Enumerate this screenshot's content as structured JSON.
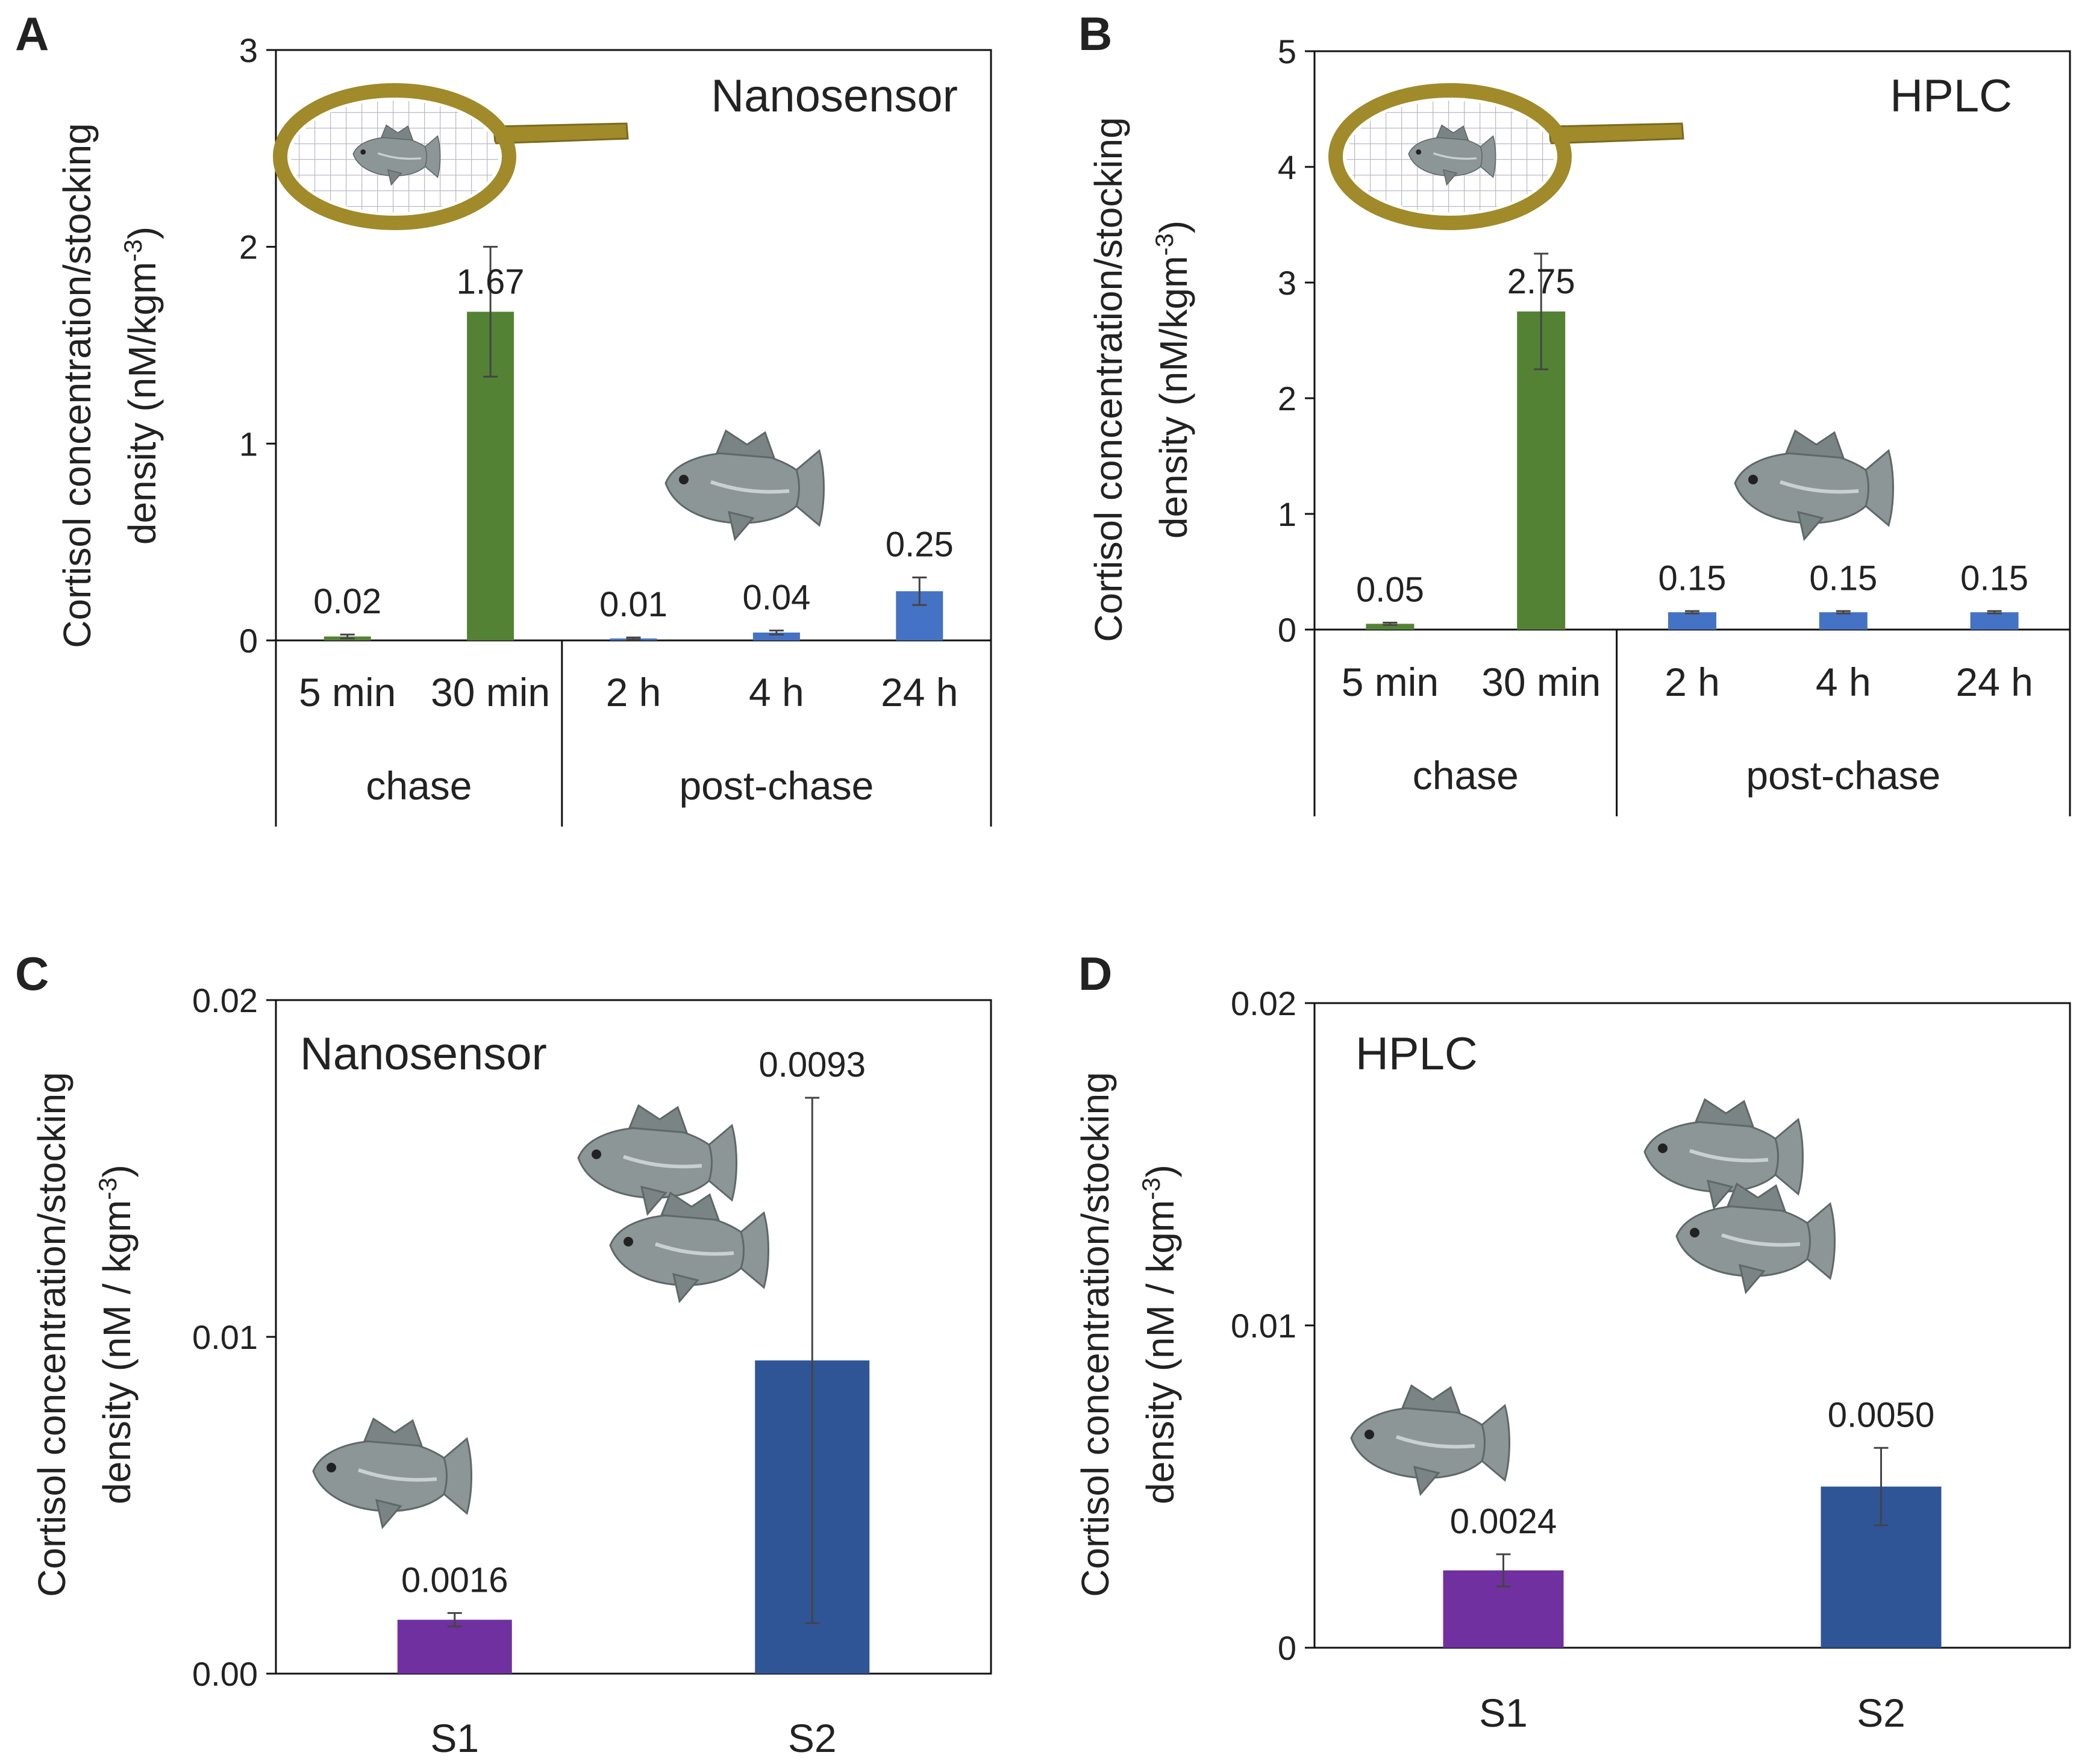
{
  "colors": {
    "chase_green": "#548235",
    "postchase_blue": "#4472c4",
    "s1_purple": "#7030a0",
    "s2_blue": "#2f5597",
    "error_bar": "#444444",
    "axis": "#111111",
    "net_frame": "#a08a2a",
    "fish_body": "#8c9696"
  },
  "chart_data": [
    {
      "panel": "A",
      "type": "bar",
      "method": "Nanosensor",
      "ylabel_line1": "Cortisol concentration/stocking",
      "ylabel_line2": "density (nM/kgm",
      "ylabel_sup": "-3",
      "ylabel_close": ")",
      "ylim": [
        0,
        3
      ],
      "yticks": [
        "0",
        "1",
        "2",
        "3"
      ],
      "ytick_values": [
        0,
        1,
        2,
        3
      ],
      "categories": [
        "5 min",
        "30 min",
        "2 h",
        "4 h",
        "24 h"
      ],
      "values": [
        0.02,
        1.67,
        0.01,
        0.04,
        0.25
      ],
      "value_labels": [
        "0.02",
        "1.67",
        "0.01",
        "0.04",
        "0.25"
      ],
      "errors": [
        0.01,
        0.33,
        0.005,
        0.01,
        0.07
      ],
      "bar_colors": [
        "#548235",
        "#548235",
        "#4472c4",
        "#4472c4",
        "#4472c4"
      ],
      "groups": [
        {
          "label": "chase",
          "start": 0,
          "end": 1
        },
        {
          "label": "post-chase",
          "start": 2,
          "end": 4
        }
      ],
      "icons": [
        "net-with-fish-icon",
        "fish-icon"
      ]
    },
    {
      "panel": "B",
      "type": "bar",
      "method": "HPLC",
      "ylabel_line1": "Cortisol concentration/stocking",
      "ylabel_line2": "density (nM/kgm",
      "ylabel_sup": "-3",
      "ylabel_close": ")",
      "ylim": [
        0,
        5
      ],
      "yticks": [
        "0",
        "1",
        "2",
        "3",
        "4",
        "5"
      ],
      "ytick_values": [
        0,
        1,
        2,
        3,
        4,
        5
      ],
      "categories": [
        "5 min",
        "30 min",
        "2 h",
        "4 h",
        "24 h"
      ],
      "values": [
        0.05,
        2.75,
        0.15,
        0.15,
        0.15
      ],
      "value_labels": [
        "0.05",
        "2.75",
        "0.15",
        "0.15",
        "0.15"
      ],
      "errors": [
        0.01,
        0.5,
        0.01,
        0.01,
        0.01
      ],
      "bar_colors": [
        "#548235",
        "#548235",
        "#4472c4",
        "#4472c4",
        "#4472c4"
      ],
      "groups": [
        {
          "label": "chase",
          "start": 0,
          "end": 1
        },
        {
          "label": "post-chase",
          "start": 2,
          "end": 4
        }
      ],
      "icons": [
        "net-with-fish-icon",
        "fish-icon"
      ]
    },
    {
      "panel": "C",
      "type": "bar",
      "method": "Nanosensor",
      "ylabel_line1": "Cortisol concentration/stocking",
      "ylabel_line2": "density (nM / kgm",
      "ylabel_sup": "-3",
      "ylabel_close": ")",
      "ylim": [
        0,
        0.02
      ],
      "yticks": [
        "0.00",
        "0.01",
        "0.02"
      ],
      "ytick_values": [
        0,
        0.01,
        0.02
      ],
      "categories": [
        "S1",
        "S2"
      ],
      "values": [
        0.0016,
        0.0093
      ],
      "value_labels": [
        "0.0016",
        "0.0093"
      ],
      "errors": [
        0.0002,
        0.0078
      ],
      "bar_colors": [
        "#7030a0",
        "#2f5597"
      ],
      "groups": [],
      "icons": [
        "fish-icon",
        "two-fish-icon"
      ]
    },
    {
      "panel": "D",
      "type": "bar",
      "method": "HPLC",
      "ylabel_line1": "Cortisol concentration/stocking",
      "ylabel_line2": "density (nM / kgm",
      "ylabel_sup": "-3",
      "ylabel_close": ")",
      "ylim": [
        0,
        0.02
      ],
      "yticks": [
        "0",
        "0.01",
        "0.02"
      ],
      "ytick_values": [
        0,
        0.01,
        0.02
      ],
      "categories": [
        "S1",
        "S2"
      ],
      "values": [
        0.0024,
        0.005
      ],
      "value_labels": [
        "0.0024",
        "0.0050"
      ],
      "errors": [
        0.0005,
        0.0012
      ],
      "bar_colors": [
        "#7030a0",
        "#2f5597"
      ],
      "groups": [],
      "icons": [
        "fish-icon",
        "two-fish-icon"
      ]
    }
  ]
}
